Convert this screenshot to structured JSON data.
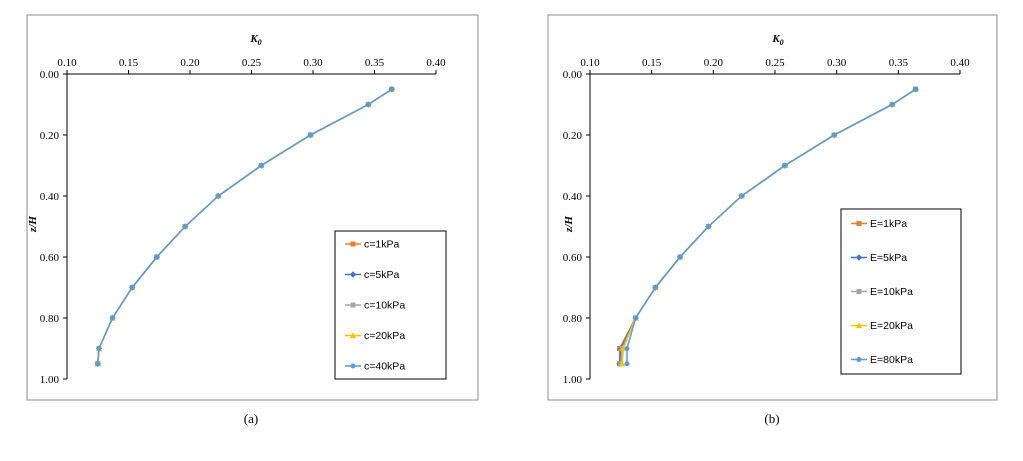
{
  "chart_data": [
    {
      "type": "line",
      "panel": "(a)",
      "xlabel": "K0",
      "ylabel": "z/H",
      "xlim": [
        0.1,
        0.4
      ],
      "ylim": [
        0.0,
        1.0
      ],
      "x_ticks": [
        "0.10",
        "0.15",
        "0.20",
        "0.25",
        "0.30",
        "0.35",
        "0.40"
      ],
      "y_ticks": [
        "0.00",
        "0.20",
        "0.40",
        "0.60",
        "0.80",
        "1.00"
      ],
      "x_axis_position": "top",
      "y_axis_inverted": true,
      "legend_position": "lower-right",
      "series": [
        {
          "name": "c=1kPa",
          "color": "#ED7D31",
          "marker": "square",
          "points": [
            [
              0.364,
              0.05
            ],
            [
              0.345,
              0.1
            ],
            [
              0.298,
              0.2
            ],
            [
              0.258,
              0.3
            ],
            [
              0.223,
              0.4
            ],
            [
              0.196,
              0.5
            ],
            [
              0.173,
              0.6
            ],
            [
              0.153,
              0.7
            ],
            [
              0.137,
              0.8
            ],
            [
              0.126,
              0.9
            ],
            [
              0.125,
              0.95
            ]
          ]
        },
        {
          "name": "c=5kPa",
          "color": "#4472C4",
          "marker": "diamond",
          "points": [
            [
              0.364,
              0.05
            ],
            [
              0.345,
              0.1
            ],
            [
              0.298,
              0.2
            ],
            [
              0.258,
              0.3
            ],
            [
              0.223,
              0.4
            ],
            [
              0.196,
              0.5
            ],
            [
              0.173,
              0.6
            ],
            [
              0.153,
              0.7
            ],
            [
              0.137,
              0.8
            ],
            [
              0.126,
              0.9
            ],
            [
              0.125,
              0.95
            ]
          ]
        },
        {
          "name": "c=10kPa",
          "color": "#A5A5A5",
          "marker": "square",
          "points": [
            [
              0.364,
              0.05
            ],
            [
              0.345,
              0.1
            ],
            [
              0.298,
              0.2
            ],
            [
              0.258,
              0.3
            ],
            [
              0.223,
              0.4
            ],
            [
              0.196,
              0.5
            ],
            [
              0.173,
              0.6
            ],
            [
              0.153,
              0.7
            ],
            [
              0.137,
              0.8
            ],
            [
              0.126,
              0.9
            ],
            [
              0.125,
              0.95
            ]
          ]
        },
        {
          "name": "c=20kPa",
          "color": "#FFC000",
          "marker": "triangle",
          "points": [
            [
              0.364,
              0.05
            ],
            [
              0.345,
              0.1
            ],
            [
              0.298,
              0.2
            ],
            [
              0.258,
              0.3
            ],
            [
              0.223,
              0.4
            ],
            [
              0.196,
              0.5
            ],
            [
              0.173,
              0.6
            ],
            [
              0.153,
              0.7
            ],
            [
              0.137,
              0.8
            ],
            [
              0.126,
              0.9
            ],
            [
              0.125,
              0.95
            ]
          ]
        },
        {
          "name": "c=40kPa",
          "color": "#5B9BD5",
          "marker": "circle",
          "points": [
            [
              0.364,
              0.05
            ],
            [
              0.345,
              0.1
            ],
            [
              0.298,
              0.2
            ],
            [
              0.258,
              0.3
            ],
            [
              0.223,
              0.4
            ],
            [
              0.196,
              0.5
            ],
            [
              0.173,
              0.6
            ],
            [
              0.153,
              0.7
            ],
            [
              0.137,
              0.8
            ],
            [
              0.126,
              0.9
            ],
            [
              0.125,
              0.95
            ]
          ]
        }
      ]
    },
    {
      "type": "line",
      "panel": "(b)",
      "xlabel": "K0",
      "ylabel": "z/H",
      "xlim": [
        0.1,
        0.4
      ],
      "ylim": [
        0.0,
        1.0
      ],
      "x_ticks": [
        "0.10",
        "0.15",
        "0.20",
        "0.25",
        "0.30",
        "0.35",
        "0.40"
      ],
      "y_ticks": [
        "0.00",
        "0.20",
        "0.40",
        "0.60",
        "0.80",
        "1.00"
      ],
      "x_axis_position": "top",
      "y_axis_inverted": true,
      "legend_position": "right",
      "series": [
        {
          "name": "E=1kPa",
          "color": "#ED7D31",
          "marker": "square",
          "points": [
            [
              0.364,
              0.05
            ],
            [
              0.345,
              0.1
            ],
            [
              0.298,
              0.2
            ],
            [
              0.258,
              0.3
            ],
            [
              0.223,
              0.4
            ],
            [
              0.196,
              0.5
            ],
            [
              0.173,
              0.6
            ],
            [
              0.153,
              0.7
            ],
            [
              0.137,
              0.8
            ],
            [
              0.124,
              0.9
            ],
            [
              0.124,
              0.95
            ]
          ]
        },
        {
          "name": "E=5kPa",
          "color": "#4472C4",
          "marker": "diamond",
          "points": [
            [
              0.364,
              0.05
            ],
            [
              0.345,
              0.1
            ],
            [
              0.298,
              0.2
            ],
            [
              0.258,
              0.3
            ],
            [
              0.223,
              0.4
            ],
            [
              0.196,
              0.5
            ],
            [
              0.173,
              0.6
            ],
            [
              0.153,
              0.7
            ],
            [
              0.137,
              0.8
            ],
            [
              0.125,
              0.9
            ],
            [
              0.124,
              0.95
            ]
          ]
        },
        {
          "name": "E=10kPa",
          "color": "#A5A5A5",
          "marker": "square",
          "points": [
            [
              0.364,
              0.05
            ],
            [
              0.345,
              0.1
            ],
            [
              0.298,
              0.2
            ],
            [
              0.258,
              0.3
            ],
            [
              0.223,
              0.4
            ],
            [
              0.196,
              0.5
            ],
            [
              0.173,
              0.6
            ],
            [
              0.153,
              0.7
            ],
            [
              0.137,
              0.8
            ],
            [
              0.126,
              0.9
            ],
            [
              0.125,
              0.95
            ]
          ]
        },
        {
          "name": "E=20kPa",
          "color": "#FFC000",
          "marker": "triangle",
          "points": [
            [
              0.364,
              0.05
            ],
            [
              0.345,
              0.1
            ],
            [
              0.298,
              0.2
            ],
            [
              0.258,
              0.3
            ],
            [
              0.223,
              0.4
            ],
            [
              0.196,
              0.5
            ],
            [
              0.173,
              0.6
            ],
            [
              0.153,
              0.7
            ],
            [
              0.137,
              0.8
            ],
            [
              0.127,
              0.9
            ],
            [
              0.126,
              0.95
            ]
          ]
        },
        {
          "name": "E=80kPa",
          "color": "#5B9BD5",
          "marker": "circle",
          "points": [
            [
              0.364,
              0.05
            ],
            [
              0.345,
              0.1
            ],
            [
              0.298,
              0.2
            ],
            [
              0.258,
              0.3
            ],
            [
              0.223,
              0.4
            ],
            [
              0.196,
              0.5
            ],
            [
              0.173,
              0.6
            ],
            [
              0.153,
              0.7
            ],
            [
              0.137,
              0.8
            ],
            [
              0.13,
              0.9
            ],
            [
              0.13,
              0.95
            ]
          ]
        }
      ]
    }
  ]
}
